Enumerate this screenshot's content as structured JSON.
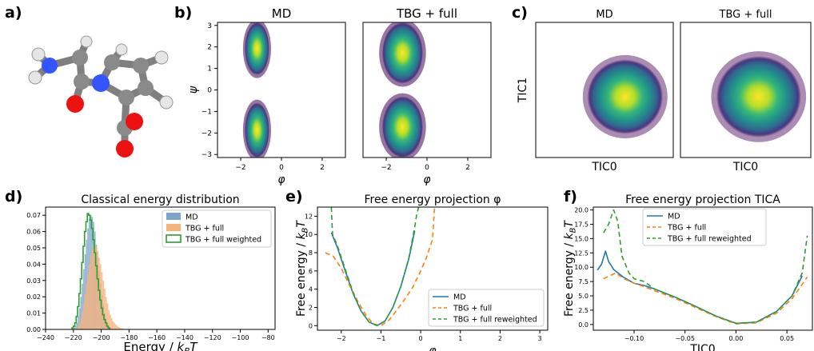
{
  "panel_letters": [
    "a)",
    "b)",
    "c)",
    "d)",
    "e)",
    "f)"
  ],
  "molecule": {
    "atom_colors": {
      "carbon": "#7f7f7f",
      "nitrogen": "#3355ff",
      "oxygen": "#ee1111",
      "hydrogen": "#e6e6e6"
    }
  },
  "chart_data": [
    {
      "id": "b1",
      "type": "heatmap",
      "title": "MD",
      "xlabel": "φ",
      "ylabel": "ψ",
      "xlim": [
        -3.14,
        3.14
      ],
      "ylim": [
        -3.14,
        3.14
      ],
      "xticks": [
        "−2",
        "0",
        "2"
      ],
      "yticks": [
        "−3",
        "−2",
        "−1",
        "0",
        "1",
        "2",
        "3"
      ],
      "blobs": [
        {
          "x": -1.2,
          "y_range": [
            0.7,
            3.14
          ],
          "width": 0.6
        },
        {
          "x": -1.2,
          "y_range": [
            -3.14,
            -0.6
          ],
          "width": 0.6
        }
      ]
    },
    {
      "id": "b2",
      "type": "heatmap",
      "title": "TBG + full",
      "xlabel": "φ",
      "xlim": [
        -3.14,
        3.14
      ],
      "ylim": [
        -3.14,
        3.14
      ],
      "xticks": [
        "−2",
        "0",
        "2"
      ],
      "blobs": [
        {
          "x": -1.2,
          "y_range": [
            0.3,
            3.14
          ],
          "width": 1.0
        },
        {
          "x": -1.2,
          "y_range": [
            -3.14,
            -0.3
          ],
          "width": 1.0
        }
      ]
    },
    {
      "id": "c1",
      "type": "heatmap",
      "title": "MD",
      "xlabel": "TIC0",
      "ylabel": "TIC1",
      "center": [
        0.65,
        0.55
      ],
      "spread": [
        0.55,
        0.55
      ]
    },
    {
      "id": "c2",
      "type": "heatmap",
      "title": "TBG + full",
      "xlabel": "TIC0",
      "center": [
        0.6,
        0.55
      ],
      "spread": [
        0.65,
        0.6
      ]
    },
    {
      "id": "d",
      "type": "bar",
      "title": "Classical energy distribution",
      "xlabel": "Energy  / k_BT",
      "xlim": [
        -240,
        -75
      ],
      "ylim": [
        0,
        0.075
      ],
      "xticks": [
        -240,
        -220,
        -200,
        -180,
        -160,
        -140,
        -120,
        -100,
        -80
      ],
      "yticks": [
        0.0,
        0.01,
        0.02,
        0.03,
        0.04,
        0.05,
        0.06,
        0.07
      ],
      "xtick_labels": [
        "−240",
        "−220",
        "−200",
        "−180",
        "−160",
        "−140",
        "−120",
        "−100",
        "−80"
      ],
      "ytick_labels": [
        "0.00",
        "0.01",
        "0.02",
        "0.03",
        "0.04",
        "0.05",
        "0.06",
        "0.07"
      ],
      "legend_position": "top-right",
      "series": [
        {
          "name": "MD",
          "color": "#7ea6cc",
          "style": "filled",
          "bin_start": -220,
          "bin_width": 1,
          "values": [
            0.001,
            0.002,
            0.004,
            0.008,
            0.013,
            0.02,
            0.028,
            0.037,
            0.046,
            0.055,
            0.062,
            0.068,
            0.07,
            0.069,
            0.066,
            0.06,
            0.052,
            0.044,
            0.036,
            0.028,
            0.021,
            0.015,
            0.01,
            0.006,
            0.004,
            0.002,
            0.001
          ]
        },
        {
          "name": "TBG + full",
          "color": "#f7b27a",
          "style": "filled",
          "bin_start": -218,
          "bin_width": 1,
          "values": [
            0.001,
            0.002,
            0.004,
            0.007,
            0.011,
            0.016,
            0.022,
            0.028,
            0.034,
            0.04,
            0.045,
            0.049,
            0.051,
            0.052,
            0.051,
            0.048,
            0.044,
            0.04,
            0.035,
            0.03,
            0.025,
            0.02,
            0.016,
            0.012,
            0.009,
            0.007,
            0.005,
            0.004,
            0.003,
            0.002,
            0.0015,
            0.001,
            0.0008,
            0.0005
          ]
        },
        {
          "name": "TBG + full weighted",
          "color": "#2ca02c",
          "style": "step",
          "bin_start": -221,
          "bin_width": 1,
          "values": [
            0.001,
            0.002,
            0.004,
            0.008,
            0.014,
            0.022,
            0.031,
            0.041,
            0.051,
            0.06,
            0.066,
            0.071,
            0.07,
            0.067,
            0.062,
            0.055,
            0.047,
            0.039,
            0.031,
            0.024,
            0.018,
            0.013,
            0.009,
            0.006,
            0.004,
            0.002,
            0.001
          ]
        }
      ]
    },
    {
      "id": "e",
      "type": "line",
      "title": "Free energy projection φ",
      "xlabel": "φ",
      "ylabel": "Free energy / k_BT",
      "xlim": [
        -2.6,
        3.2
      ],
      "ylim": [
        -0.5,
        13
      ],
      "xticks": [
        -2,
        -1,
        0,
        1,
        2,
        3
      ],
      "yticks": [
        0,
        2,
        4,
        6,
        8,
        10,
        12
      ],
      "xtick_labels": [
        "−2",
        "−1",
        "0",
        "1",
        "2",
        "3"
      ],
      "ytick_labels": [
        "0",
        "2",
        "4",
        "6",
        "8",
        "10",
        "12"
      ],
      "legend_position": "lower-right",
      "series": [
        {
          "name": "MD",
          "color": "#1f77b4",
          "dash": "",
          "x": [
            -2.25,
            -2.1,
            -1.9,
            -1.7,
            -1.5,
            -1.3,
            -1.1,
            -0.9,
            -0.7,
            -0.5,
            -0.3,
            -0.15
          ],
          "y": [
            10.2,
            8.6,
            6.0,
            3.5,
            1.6,
            0.4,
            0.0,
            0.5,
            2.0,
            4.3,
            7.3,
            10.4
          ]
        },
        {
          "name": "TBG + full",
          "color": "#ff7f0e",
          "dash": "6,4",
          "x": [
            -2.4,
            -2.2,
            -2.0,
            -1.8,
            -1.6,
            -1.4,
            -1.2,
            -1.0,
            -0.8,
            -0.6,
            -0.4,
            -0.2,
            0.0,
            0.15,
            0.3,
            0.35
          ],
          "y": [
            8.0,
            7.6,
            6.3,
            4.5,
            2.8,
            1.3,
            0.2,
            0.0,
            0.6,
            1.7,
            2.9,
            4.2,
            6.0,
            7.5,
            9.5,
            13
          ]
        },
        {
          "name": "TBG + full reweighted",
          "color": "#2ca02c",
          "dash": "6,4",
          "x": [
            -2.25,
            -2.22,
            -2.1,
            -1.9,
            -1.7,
            -1.5,
            -1.3,
            -1.1,
            -0.9,
            -0.7,
            -0.5,
            -0.3,
            -0.15,
            -0.1,
            -0.05
          ],
          "y": [
            13,
            10.0,
            8.8,
            6.2,
            3.6,
            1.6,
            0.4,
            0.0,
            0.5,
            2.0,
            4.3,
            7.4,
            10.8,
            12.2,
            13
          ]
        }
      ]
    },
    {
      "id": "f",
      "type": "line",
      "title": "Free energy projection TICA",
      "xlabel": "TIC0",
      "ylabel": "Free energy / k_BT",
      "xlim": [
        -0.14,
        0.075
      ],
      "ylim": [
        -1,
        20.5
      ],
      "xticks": [
        -0.1,
        -0.05,
        0.0,
        0.05
      ],
      "yticks": [
        0,
        2.5,
        5,
        7.5,
        10,
        12.5,
        15,
        17.5,
        20
      ],
      "xtick_labels": [
        "−0.10",
        "−0.05",
        "0.00",
        "0.05"
      ],
      "ytick_labels": [
        "0.0",
        "2.5",
        "5.0",
        "7.5",
        "10.0",
        "12.5",
        "15.0",
        "17.5",
        "20.0"
      ],
      "legend_position": "top-left",
      "series": [
        {
          "name": "MD",
          "color": "#1f77b4",
          "dash": "",
          "x": [
            -0.136,
            -0.132,
            -0.128,
            -0.125,
            -0.12,
            -0.11,
            -0.1,
            -0.09,
            -0.08,
            -0.06,
            -0.04,
            -0.02,
            0.0,
            0.02,
            0.04,
            0.055,
            0.065
          ],
          "y": [
            9.5,
            10.5,
            12.8,
            11.0,
            9.6,
            8.2,
            7.2,
            6.8,
            6.2,
            4.8,
            3.2,
            1.5,
            0.2,
            0.4,
            2.3,
            5.0,
            8.5
          ]
        },
        {
          "name": "TBG + full",
          "color": "#ff7f0e",
          "dash": "6,4",
          "x": [
            -0.13,
            -0.125,
            -0.118,
            -0.11,
            -0.1,
            -0.09,
            -0.08,
            -0.06,
            -0.04,
            -0.02,
            0.0,
            0.02,
            0.04,
            0.055,
            0.07
          ],
          "y": [
            8.0,
            8.4,
            9.0,
            8.0,
            7.2,
            6.6,
            5.9,
            4.6,
            3.0,
            1.4,
            0.1,
            0.3,
            2.0,
            4.5,
            8.3
          ]
        },
        {
          "name": "TBG + full  reweighted",
          "color": "#2ca02c",
          "dash": "6,4",
          "x": [
            -0.13,
            -0.125,
            -0.12,
            -0.116,
            -0.112,
            -0.105,
            -0.1,
            -0.09,
            -0.08,
            -0.06,
            -0.04,
            -0.02,
            0.0,
            0.02,
            0.04,
            0.055,
            0.065,
            0.07
          ],
          "y": [
            16.0,
            17.5,
            20.0,
            18.0,
            12.0,
            9.0,
            8.0,
            7.5,
            6.2,
            4.8,
            3.2,
            1.5,
            0.2,
            0.4,
            2.3,
            5.0,
            9.0,
            15.5
          ]
        }
      ]
    }
  ]
}
